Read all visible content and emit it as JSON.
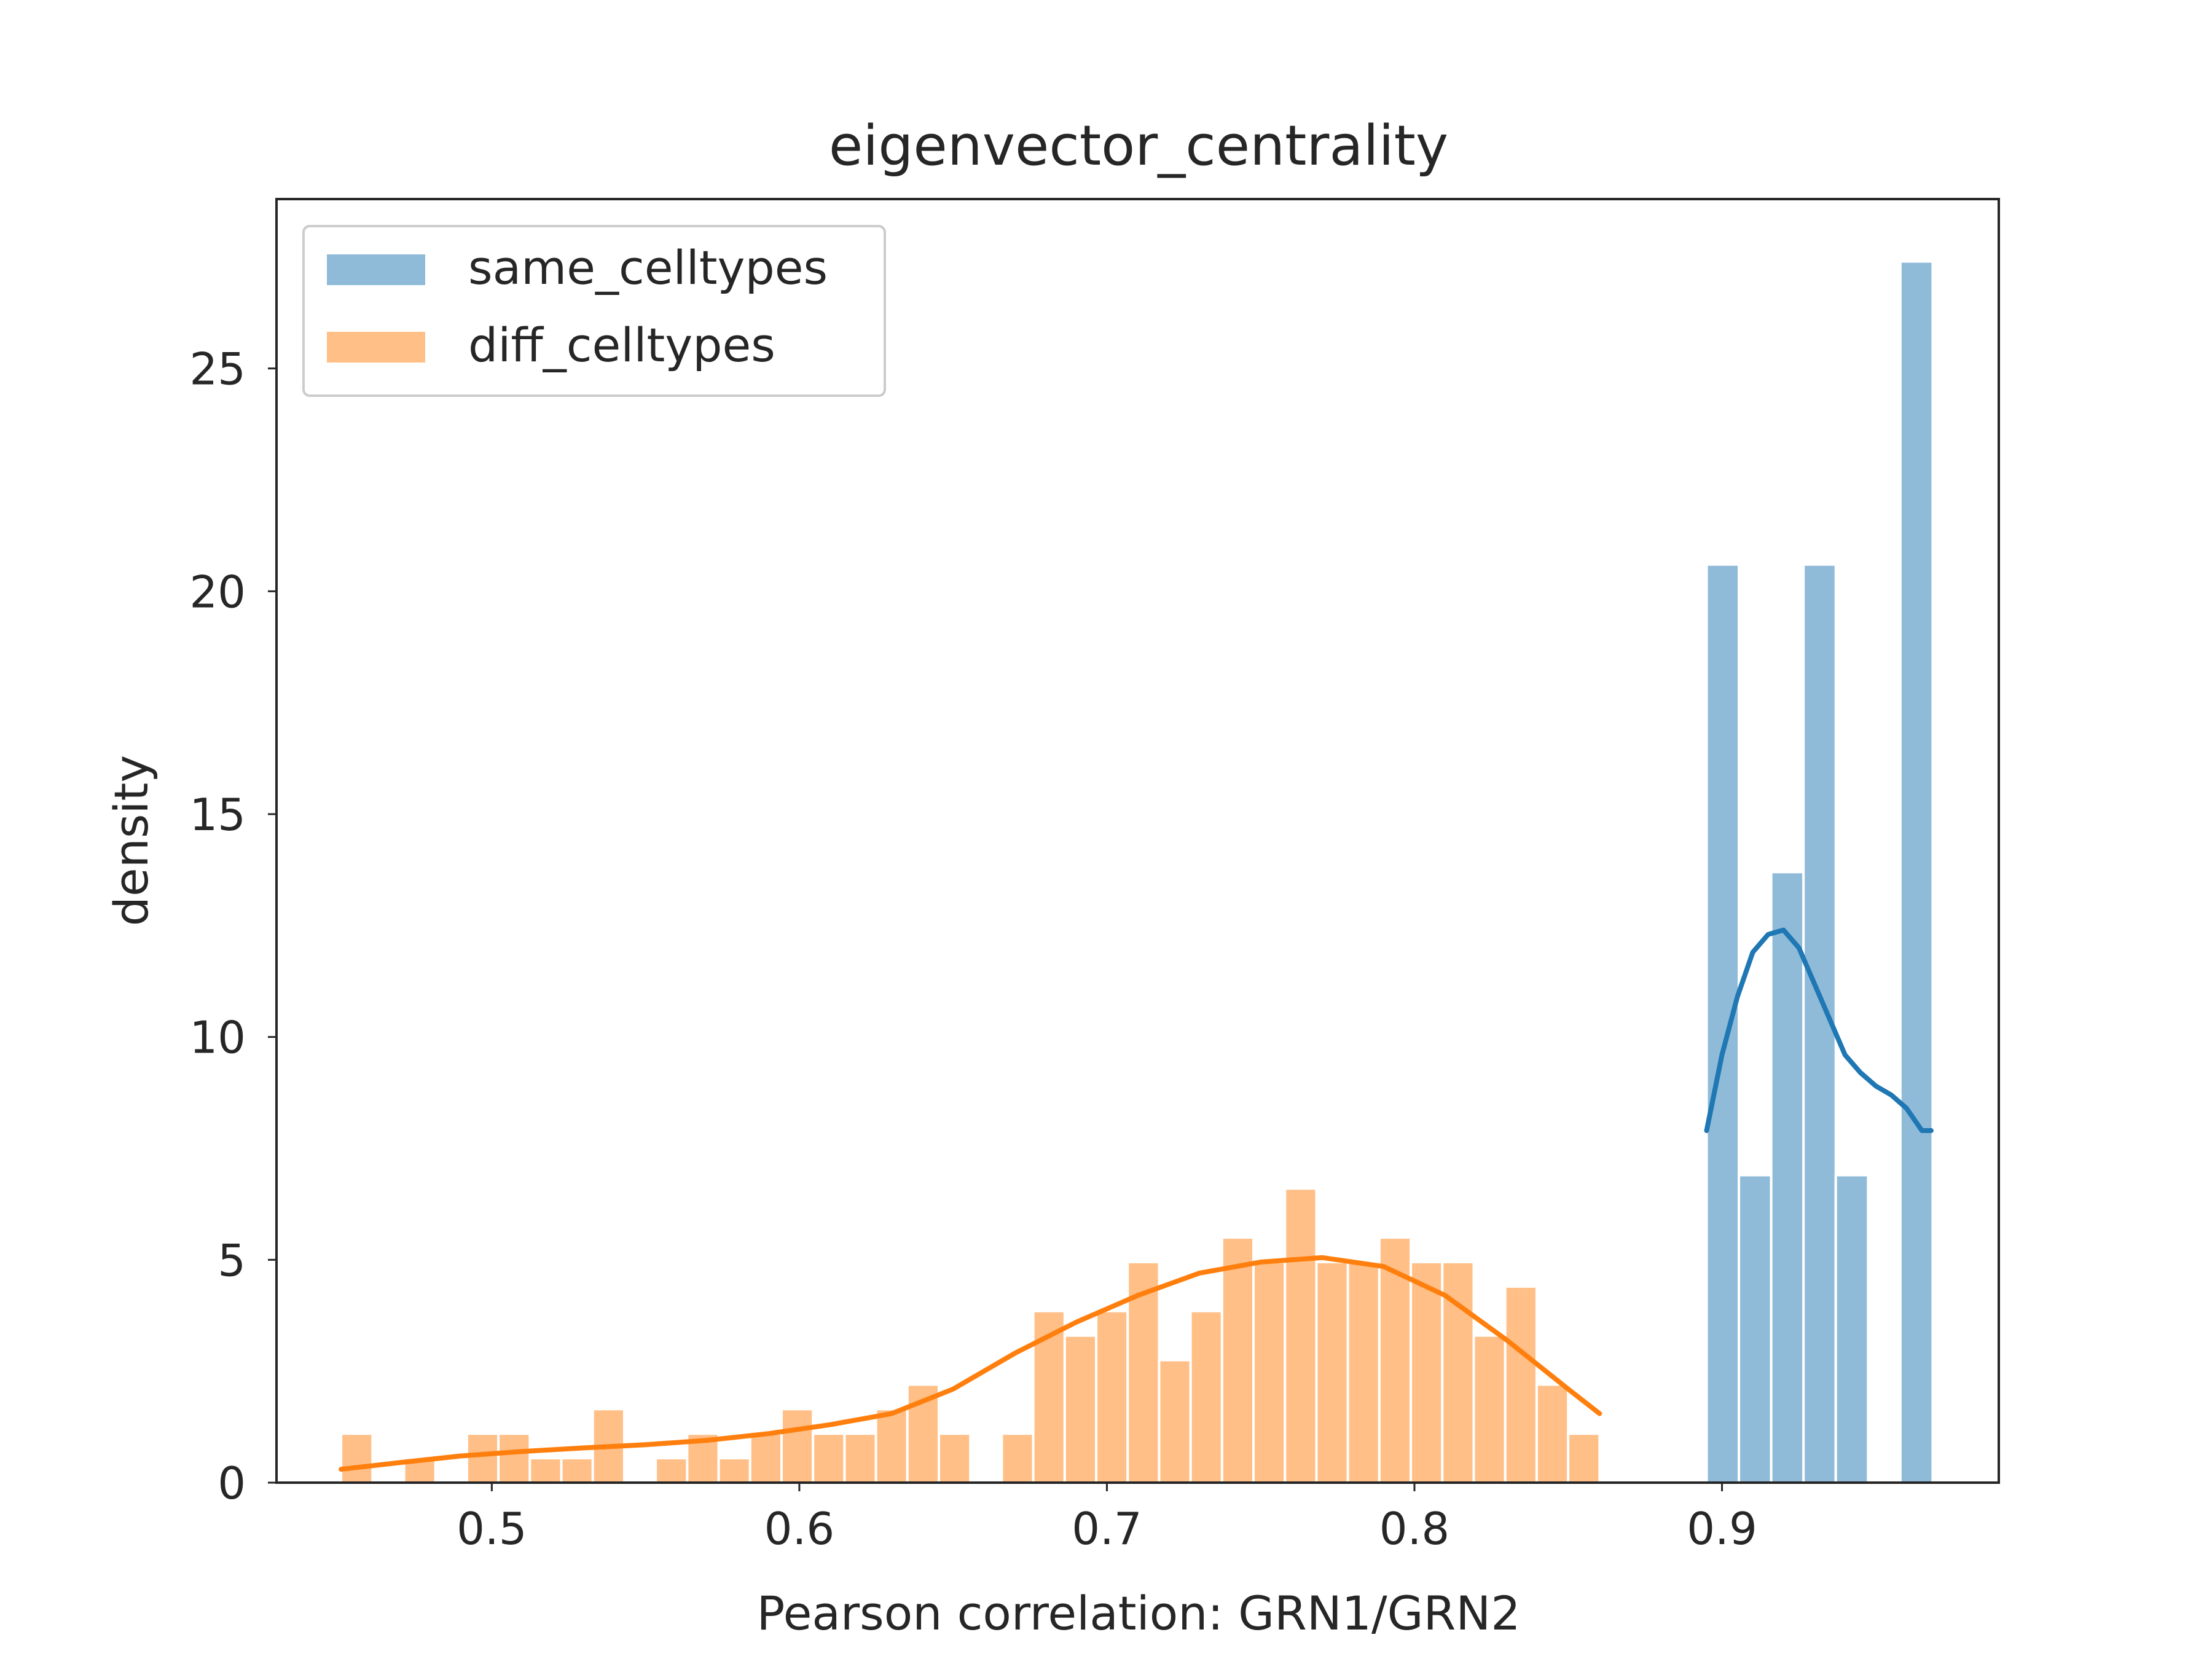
{
  "chart_data": {
    "type": "bar",
    "title": "eigenvector_centrality",
    "xlabel": "Pearson correlation: GRN1/GRN2",
    "ylabel": "density",
    "xlim": [
      0.43,
      0.99
    ],
    "ylim": [
      0,
      28.8
    ],
    "xticks": [
      0.5,
      0.6,
      0.7,
      0.8,
      0.9
    ],
    "xtick_labels": [
      "0.5",
      "0.6",
      "0.7",
      "0.8",
      "0.9"
    ],
    "yticks": [
      0,
      5,
      10,
      15,
      20,
      25
    ],
    "ytick_labels": [
      "0",
      "5",
      "10",
      "15",
      "20",
      "25"
    ],
    "grid": false,
    "legend_position": "top-left",
    "series": [
      {
        "name": "same_celltypes",
        "color": "#1f77b4",
        "bar_alpha": 0.5,
        "bin_edges": [
          0.895,
          0.9055,
          0.916,
          0.9265,
          0.937,
          0.9475,
          0.958,
          0.9685
        ],
        "values": [
          20.6,
          6.9,
          13.7,
          20.6,
          6.9,
          0,
          27.4
        ],
        "kde": {
          "x": [
            0.895,
            0.9,
            0.905,
            0.91,
            0.915,
            0.92,
            0.925,
            0.93,
            0.935,
            0.94,
            0.945,
            0.95,
            0.955,
            0.96,
            0.965,
            0.968
          ],
          "y": [
            7.9,
            9.6,
            10.9,
            11.9,
            12.3,
            12.4,
            12.0,
            11.2,
            10.4,
            9.6,
            9.2,
            8.9,
            8.7,
            8.4,
            7.9,
            7.9
          ]
        }
      },
      {
        "name": "diff_celltypes",
        "color": "#ff7f0e",
        "bar_alpha": 0.5,
        "bin_edges": [
          0.451,
          0.46123,
          0.47146,
          0.48169,
          0.49192,
          0.50215,
          0.51238,
          0.52261,
          0.53284,
          0.54307,
          0.5533,
          0.56353,
          0.57376,
          0.58399,
          0.59422,
          0.60445,
          0.61468,
          0.62491,
          0.63514,
          0.64537,
          0.6556,
          0.66583,
          0.67606,
          0.68629,
          0.69652,
          0.70675,
          0.71698,
          0.72721,
          0.73744,
          0.74767,
          0.7579,
          0.76813,
          0.77836,
          0.78859,
          0.79882,
          0.80905,
          0.81928,
          0.82951,
          0.83974,
          0.84997,
          0.8602
        ],
        "values": [
          1.1,
          0,
          0.55,
          0,
          1.1,
          1.1,
          0.55,
          0.55,
          1.65,
          0,
          0.55,
          1.1,
          0.55,
          1.1,
          1.65,
          1.1,
          1.1,
          1.65,
          2.2,
          1.1,
          0,
          1.1,
          3.85,
          3.3,
          3.85,
          4.95,
          2.75,
          3.85,
          5.5,
          4.95,
          6.6,
          4.95,
          4.95,
          5.5,
          4.95,
          4.95,
          3.3,
          4.4,
          2.2,
          1.1
        ],
        "kde": {
          "x": [
            0.451,
            0.47,
            0.49,
            0.51,
            0.53,
            0.55,
            0.57,
            0.59,
            0.61,
            0.63,
            0.65,
            0.67,
            0.69,
            0.71,
            0.73,
            0.75,
            0.77,
            0.79,
            0.81,
            0.83,
            0.85,
            0.8602
          ],
          "y": [
            0.3,
            0.45,
            0.6,
            0.7,
            0.78,
            0.85,
            0.95,
            1.1,
            1.3,
            1.55,
            2.1,
            2.9,
            3.6,
            4.2,
            4.7,
            4.95,
            5.05,
            4.85,
            4.2,
            3.2,
            2.1,
            1.55
          ]
        }
      }
    ]
  }
}
